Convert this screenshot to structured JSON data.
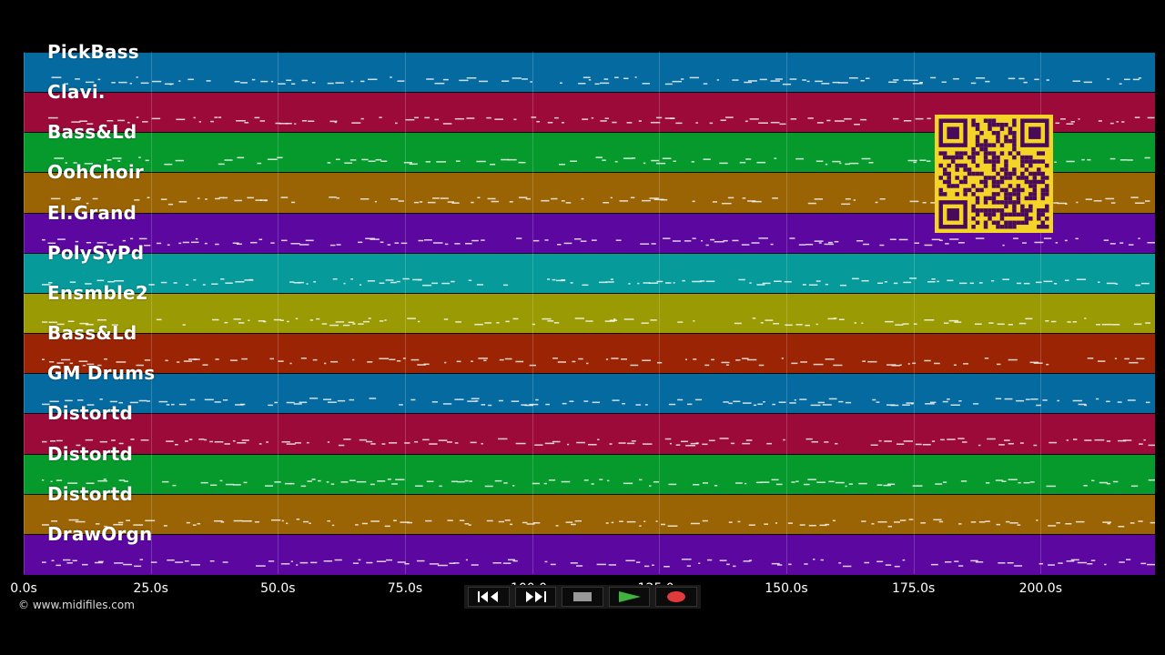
{
  "tracks": [
    {
      "name": "PickBass",
      "color": "#056aa0"
    },
    {
      "name": "Clavi.",
      "color": "#9c0a3a"
    },
    {
      "name": "Bass&Ld",
      "color": "#069a2c"
    },
    {
      "name": "OohChoir",
      "color": "#9a6304"
    },
    {
      "name": "El.Grand",
      "color": "#5c08a0"
    },
    {
      "name": "PolySyPd",
      "color": "#079a9a"
    },
    {
      "name": "Ensmble2",
      "color": "#9a9a04"
    },
    {
      "name": "Bass&Ld",
      "color": "#9a2404"
    },
    {
      "name": "GM Drums",
      "color": "#056aa0"
    },
    {
      "name": "Distortd",
      "color": "#9c0a3a"
    },
    {
      "name": "Distortd",
      "color": "#069a2c"
    },
    {
      "name": "Distortd",
      "color": "#9a6304"
    },
    {
      "name": "DrawOrgn",
      "color": "#5c08a0"
    }
  ],
  "timeline": {
    "ticks": [
      "0.0s",
      "25.0s",
      "50.0s",
      "75.0s",
      "100.0s",
      "125.0s",
      "150.0s",
      "175.0s",
      "200.0s"
    ],
    "tick_seconds": [
      0,
      25,
      50,
      75,
      100,
      125,
      150,
      175,
      200
    ],
    "max_seconds": 222.5
  },
  "copyright": "© www.midifiles.com",
  "transport": {
    "rewind_icon": "rewind-icon",
    "forward_icon": "fast-forward-icon",
    "stop_icon": "stop-icon",
    "play_icon": "play-icon",
    "record_icon": "record-icon",
    "play_color": "#3fb23f",
    "record_color": "#e03a3a"
  },
  "qr": {
    "color": "#f5d428",
    "dark": "#4a0a5a"
  }
}
